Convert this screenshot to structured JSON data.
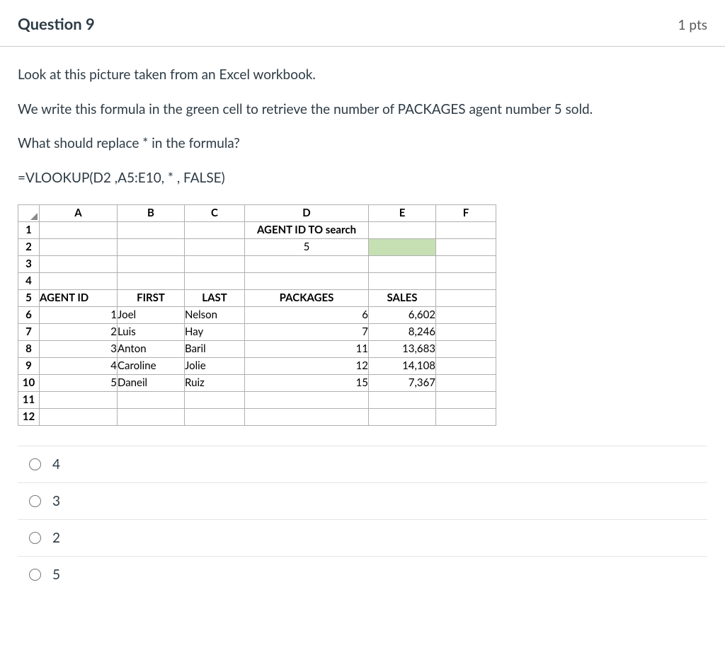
{
  "header": {
    "title": "Question 9",
    "points": "1 pts"
  },
  "prompt": {
    "line1": "Look at this picture taken from an Excel workbook.",
    "line2": "We write this formula in the green cell to retrieve the number of PACKAGES agent number 5 sold.",
    "line3": "What should replace * in the formula?",
    "line4": "=VLOOKUP(D2 ,A5:E10, * , FALSE)"
  },
  "excel": {
    "columns": [
      "A",
      "B",
      "C",
      "D",
      "E",
      "F"
    ],
    "row_labels": [
      "1",
      "2",
      "3",
      "4",
      "5",
      "6",
      "7",
      "8",
      "9",
      "10",
      "11",
      "12"
    ],
    "d1": "AGENT ID TO search",
    "d2": "5",
    "green_cell_color": "#c6e0b4",
    "table_header": {
      "a": "AGENT ID",
      "b": "FIRST",
      "c": "LAST",
      "d": "PACKAGES",
      "e": "SALES"
    },
    "rows": [
      {
        "id": "1",
        "first": "Joel",
        "last": "Nelson",
        "packages": "6",
        "sales": "6,602"
      },
      {
        "id": "2",
        "first": "Luis",
        "last": "Hay",
        "packages": "7",
        "sales": "8,246"
      },
      {
        "id": "3",
        "first": "Anton",
        "last": "Baril",
        "packages": "11",
        "sales": "13,683"
      },
      {
        "id": "4",
        "first": "Caroline",
        "last": "Jolie",
        "packages": "12",
        "sales": "14,108"
      },
      {
        "id": "5",
        "first": "Daneil",
        "last": "Ruiz",
        "packages": "15",
        "sales": "7,367"
      }
    ]
  },
  "options": [
    {
      "label": "4"
    },
    {
      "label": "3"
    },
    {
      "label": "2"
    },
    {
      "label": "5"
    }
  ]
}
